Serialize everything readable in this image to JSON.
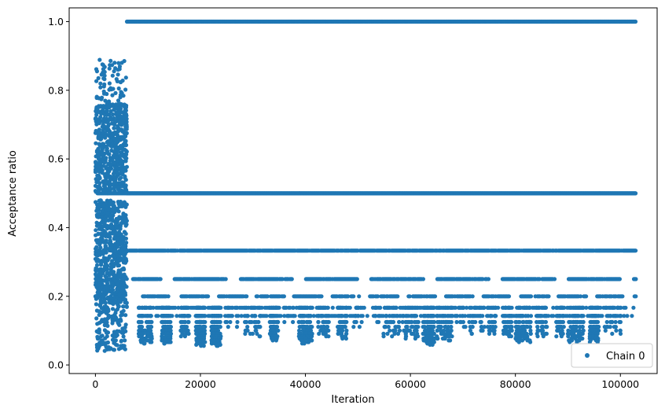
{
  "chart_data": {
    "type": "scatter",
    "xlabel": "Iteration",
    "ylabel": "Acceptance ratio",
    "xlim": [
      -5000,
      107000
    ],
    "ylim": [
      -0.025,
      1.04
    ],
    "xticks": [
      0,
      20000,
      40000,
      60000,
      80000,
      100000
    ],
    "yticks": [
      0.0,
      0.2,
      0.4,
      0.6,
      0.8,
      1.0
    ],
    "grid": false,
    "legend_position": "bottom-right",
    "series": [
      {
        "name": "Chain 0",
        "color": "#1f77b4",
        "marker": "circle",
        "description_levels": {
          "burn_in_x_range": [
            0,
            6000
          ],
          "burn_in_y_range": [
            0.03,
            0.89
          ],
          "main_x_range": [
            6000,
            103000
          ],
          "plateaus": [
            1.0,
            0.5,
            0.333,
            0.25,
            0.2,
            0.167,
            0.143,
            0.125,
            0.111,
            0.1,
            0.091,
            0.083,
            0.077,
            0.071,
            0.067,
            0.063,
            0.059,
            0.056,
            0.053
          ]
        }
      }
    ]
  }
}
